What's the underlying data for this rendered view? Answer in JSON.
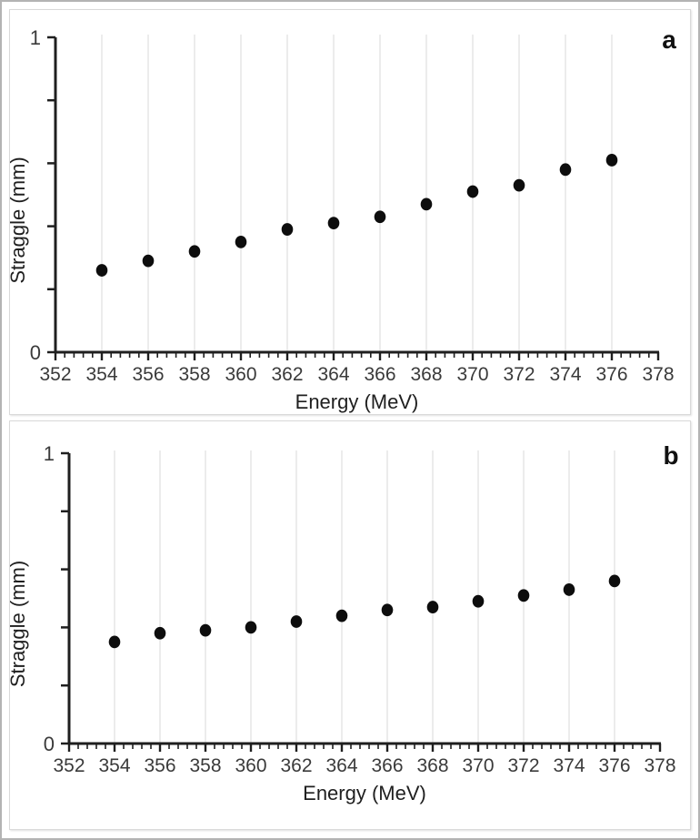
{
  "figure": {
    "description": "Two stacked scatter panels of straggle versus proton energy",
    "colors": {
      "marker": "#0d0d0d",
      "axis": "#1f1f1f",
      "grid": "#d9d9d9",
      "tick_label": "#3a3a3a",
      "panel_border": "#d9d9d9",
      "outer_border": "#b3b3b3",
      "background": "#ffffff"
    }
  },
  "chart_data": [
    {
      "type": "scatter",
      "panel_label": "a",
      "title": "",
      "xlabel": "Energy (MeV)",
      "ylabel": "Straggle (mm)",
      "xlim": [
        352,
        378
      ],
      "ylim": [
        0,
        1
      ],
      "x_major_step": 2,
      "x_minor_step": 0.4,
      "y_major_step": 0.2,
      "x_tick_labels": [
        "352",
        "354",
        "356",
        "358",
        "360",
        "362",
        "364",
        "366",
        "368",
        "370",
        "372",
        "374",
        "376",
        "378"
      ],
      "y_tick_labels_shown": [
        "0",
        "1"
      ],
      "grid": "vertical-at-data-x",
      "legend": "none",
      "x": [
        354,
        356,
        358,
        360,
        362,
        364,
        366,
        368,
        370,
        372,
        374,
        376
      ],
      "y": [
        0.26,
        0.29,
        0.32,
        0.35,
        0.39,
        0.41,
        0.43,
        0.47,
        0.51,
        0.53,
        0.58,
        0.61
      ]
    },
    {
      "type": "scatter",
      "panel_label": "b",
      "title": "",
      "xlabel": "Energy (MeV)",
      "ylabel": "Straggle (mm)",
      "xlim": [
        352,
        378
      ],
      "ylim": [
        0,
        1
      ],
      "x_major_step": 2,
      "x_minor_step": 0.4,
      "y_major_step": 0.2,
      "x_tick_labels": [
        "352",
        "354",
        "356",
        "358",
        "360",
        "362",
        "364",
        "366",
        "368",
        "370",
        "372",
        "374",
        "376",
        "378"
      ],
      "y_tick_labels_shown": [
        "0",
        "1"
      ],
      "grid": "vertical-at-data-x",
      "legend": "none",
      "x": [
        354,
        356,
        358,
        360,
        362,
        364,
        366,
        368,
        370,
        372,
        374,
        376
      ],
      "y": [
        0.35,
        0.38,
        0.39,
        0.4,
        0.42,
        0.44,
        0.46,
        0.47,
        0.49,
        0.51,
        0.53,
        0.56
      ]
    }
  ]
}
